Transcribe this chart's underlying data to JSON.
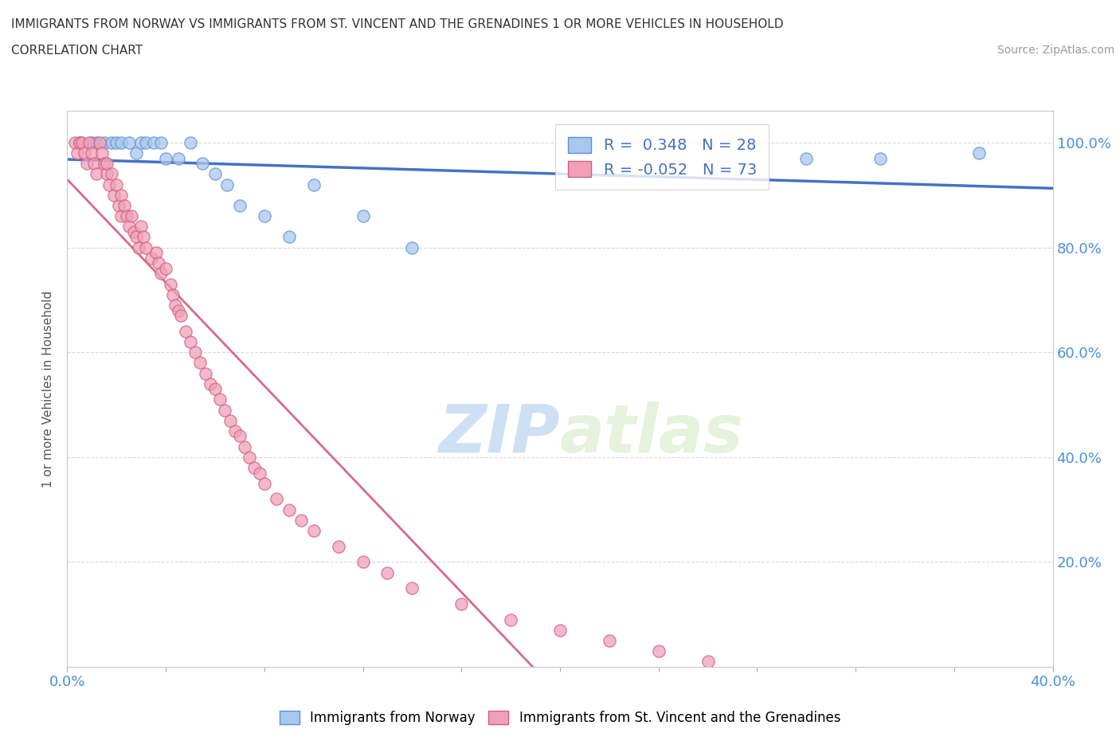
{
  "title_line1": "IMMIGRANTS FROM NORWAY VS IMMIGRANTS FROM ST. VINCENT AND THE GRENADINES 1 OR MORE VEHICLES IN HOUSEHOLD",
  "title_line2": "CORRELATION CHART",
  "source_text": "Source: ZipAtlas.com",
  "ylabel": "1 or more Vehicles in Household",
  "xlim": [
    0.0,
    0.4
  ],
  "ylim": [
    0.0,
    1.06
  ],
  "norway_color": "#a8c8f0",
  "norway_edge": "#6090d0",
  "svg_color": "#f0a0b8",
  "svg_edge": "#d06080",
  "norway_r": 0.348,
  "norway_n": 28,
  "svg_r": -0.052,
  "svg_n": 73,
  "norway_scatter_x": [
    0.005,
    0.01,
    0.012,
    0.015,
    0.018,
    0.02,
    0.022,
    0.025,
    0.028,
    0.03,
    0.032,
    0.035,
    0.038,
    0.04,
    0.045,
    0.05,
    0.055,
    0.06,
    0.065,
    0.07,
    0.08,
    0.09,
    0.1,
    0.12,
    0.14,
    0.3,
    0.33,
    0.37
  ],
  "norway_scatter_y": [
    1.0,
    1.0,
    1.0,
    1.0,
    1.0,
    1.0,
    1.0,
    1.0,
    0.98,
    1.0,
    1.0,
    1.0,
    1.0,
    0.97,
    0.97,
    1.0,
    0.96,
    0.94,
    0.92,
    0.88,
    0.86,
    0.82,
    0.92,
    0.86,
    0.8,
    0.97,
    0.97,
    0.98
  ],
  "svg_scatter_x": [
    0.003,
    0.004,
    0.005,
    0.006,
    0.007,
    0.008,
    0.009,
    0.01,
    0.011,
    0.012,
    0.013,
    0.014,
    0.015,
    0.016,
    0.016,
    0.017,
    0.018,
    0.019,
    0.02,
    0.021,
    0.022,
    0.022,
    0.023,
    0.024,
    0.025,
    0.026,
    0.027,
    0.028,
    0.029,
    0.03,
    0.031,
    0.032,
    0.034,
    0.036,
    0.037,
    0.038,
    0.04,
    0.042,
    0.043,
    0.044,
    0.045,
    0.046,
    0.048,
    0.05,
    0.052,
    0.054,
    0.056,
    0.058,
    0.06,
    0.062,
    0.064,
    0.066,
    0.068,
    0.07,
    0.072,
    0.074,
    0.076,
    0.078,
    0.08,
    0.085,
    0.09,
    0.095,
    0.1,
    0.11,
    0.12,
    0.13,
    0.14,
    0.16,
    0.18,
    0.2,
    0.22,
    0.24,
    0.26
  ],
  "svg_scatter_y": [
    1.0,
    0.98,
    1.0,
    1.0,
    0.98,
    0.96,
    1.0,
    0.98,
    0.96,
    0.94,
    1.0,
    0.98,
    0.96,
    0.94,
    0.96,
    0.92,
    0.94,
    0.9,
    0.92,
    0.88,
    0.9,
    0.86,
    0.88,
    0.86,
    0.84,
    0.86,
    0.83,
    0.82,
    0.8,
    0.84,
    0.82,
    0.8,
    0.78,
    0.79,
    0.77,
    0.75,
    0.76,
    0.73,
    0.71,
    0.69,
    0.68,
    0.67,
    0.64,
    0.62,
    0.6,
    0.58,
    0.56,
    0.54,
    0.53,
    0.51,
    0.49,
    0.47,
    0.45,
    0.44,
    0.42,
    0.4,
    0.38,
    0.37,
    0.35,
    0.32,
    0.3,
    0.28,
    0.26,
    0.23,
    0.2,
    0.18,
    0.15,
    0.12,
    0.09,
    0.07,
    0.05,
    0.03,
    0.01
  ],
  "norway_trendline_color": "#4472c4",
  "svg_trendline_color": "#d06080",
  "watermark_color": "#d0e8f8",
  "bg_color": "#ffffff",
  "grid_color": "#d0d0d0"
}
